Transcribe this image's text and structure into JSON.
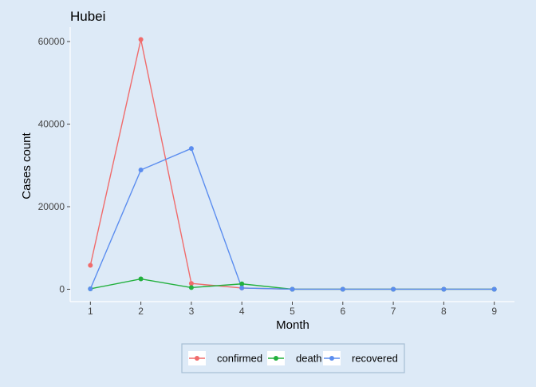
{
  "chart_data": {
    "type": "line",
    "title": "Hubei",
    "xlabel": "Month",
    "ylabel": "Cases count",
    "x": [
      1,
      2,
      3,
      4,
      5,
      6,
      7,
      8,
      9
    ],
    "xticks": [
      1,
      2,
      3,
      4,
      5,
      6,
      7,
      8,
      9
    ],
    "yticks": [
      0,
      20000,
      40000,
      60000
    ],
    "xlim": [
      0.6,
      9.4
    ],
    "ylim": [
      -3000,
      63500
    ],
    "grid": false,
    "legend_position": "bottom",
    "series": [
      {
        "name": "confirmed",
        "color": "#f06b6b",
        "values": [
          5800,
          60500,
          1400,
          300,
          0,
          0,
          0,
          0,
          0
        ]
      },
      {
        "name": "death",
        "color": "#22b03d",
        "values": [
          100,
          2500,
          400,
          1300,
          0,
          0,
          0,
          0,
          0
        ]
      },
      {
        "name": "recovered",
        "color": "#5b8def",
        "values": [
          100,
          28900,
          34100,
          300,
          0,
          0,
          0,
          0,
          0
        ]
      }
    ]
  }
}
